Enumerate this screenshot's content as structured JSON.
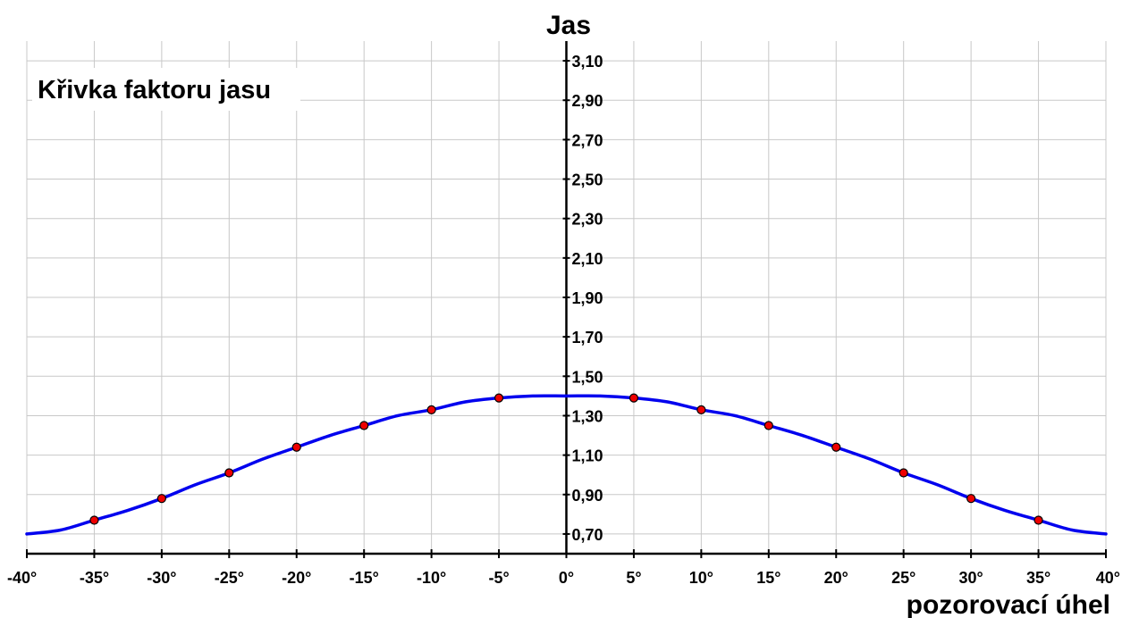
{
  "chart_data": {
    "type": "line",
    "title": "Křivka faktoru jasu",
    "xlabel": "pozorovací úhel",
    "ylabel": "Jas",
    "xlim": [
      -40,
      40
    ],
    "ylim": [
      0.6,
      3.2
    ],
    "x_ticks": [
      -40,
      -35,
      -30,
      -25,
      -20,
      -15,
      -10,
      -5,
      0,
      5,
      10,
      15,
      20,
      25,
      30,
      35,
      40
    ],
    "x_tick_labels": [
      "-40°",
      "-35°",
      "-30°",
      "-25°",
      "-20°",
      "-15°",
      "-10°",
      "-5°",
      "0°",
      "5°",
      "10°",
      "15°",
      "20°",
      "25°",
      "30°",
      "35°",
      "40°"
    ],
    "y_ticks": [
      0.7,
      0.9,
      1.1,
      1.3,
      1.5,
      1.7,
      1.9,
      2.1,
      2.3,
      2.5,
      2.7,
      2.9,
      3.1
    ],
    "y_tick_labels": [
      "0,70",
      "0,90",
      "1,10",
      "1,30",
      "1,50",
      "1,70",
      "1,90",
      "2,10",
      "2,30",
      "2,50",
      "2,70",
      "2,90",
      "3,10"
    ],
    "grid": true,
    "series": [
      {
        "color": "#0000ee",
        "marker_color": "#ee0000",
        "curve": {
          "x": [
            -40,
            -37.5,
            -35,
            -32.5,
            -30,
            -27.5,
            -25,
            -22.5,
            -20,
            -17.5,
            -15,
            -12.5,
            -10,
            -7.5,
            -5,
            -2.5,
            0,
            2.5,
            5,
            7.5,
            10,
            12.5,
            15,
            17.5,
            20,
            22.5,
            25,
            27.5,
            30,
            32.5,
            35,
            37.5,
            40
          ],
          "y": [
            0.7,
            0.72,
            0.77,
            0.82,
            0.88,
            0.95,
            1.01,
            1.08,
            1.14,
            1.2,
            1.25,
            1.3,
            1.33,
            1.37,
            1.39,
            1.4,
            1.4,
            1.4,
            1.39,
            1.37,
            1.33,
            1.3,
            1.25,
            1.2,
            1.14,
            1.08,
            1.01,
            0.95,
            0.88,
            0.82,
            0.77,
            0.72,
            0.7
          ]
        },
        "points": {
          "x": [
            -35,
            -30,
            -25,
            -20,
            -15,
            -10,
            -5,
            5,
            10,
            15,
            20,
            25,
            30,
            35
          ],
          "y": [
            0.77,
            0.88,
            1.01,
            1.14,
            1.25,
            1.33,
            1.39,
            1.39,
            1.33,
            1.25,
            1.14,
            1.01,
            0.88,
            0.77
          ]
        }
      }
    ]
  }
}
